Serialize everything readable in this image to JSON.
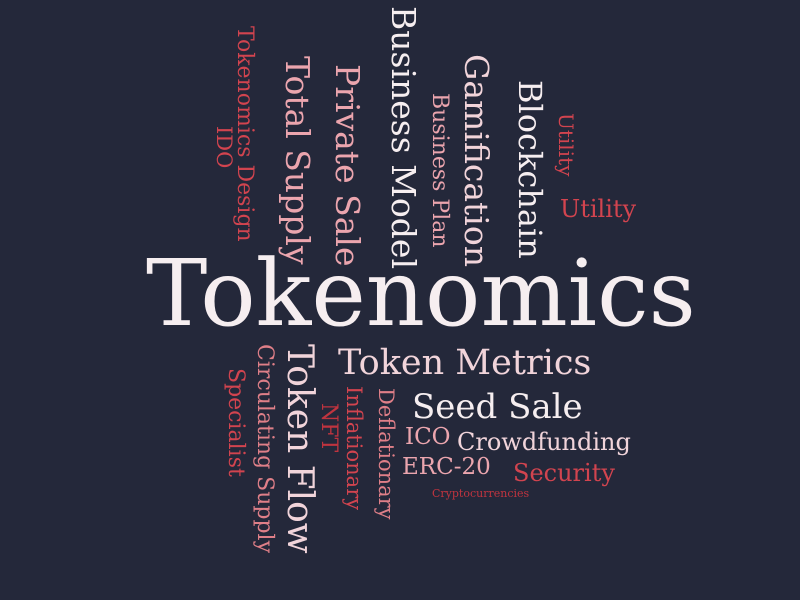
{
  "background": "#24283a",
  "palette": {
    "white": "#f6eef0",
    "pale": "#f1d4da",
    "pink": "#eba5ae",
    "rose": "#df7f88",
    "red": "#d2444f",
    "dark_red": "#c0343f"
  },
  "words": {
    "tokenomics": "Tokenomics",
    "business_model": "Business Model",
    "gamification": "Gamification",
    "blockchain": "Blockchain",
    "private_sale": "Private Sale",
    "total_supply": "Total Supply",
    "business_plan": "Business Plan",
    "tokenomics_design": "Tokenomics Design",
    "ido": "IDO",
    "utility_vertical": "Utility",
    "utility": "Utility",
    "token_metrics": "Token Metrics",
    "seed_sale": "Seed Sale",
    "token_flow": "Token Flow",
    "circulating_supply": "Circulating Supply",
    "specialist": "Specialist",
    "nft": "NFT",
    "inflationary": "Inflationary",
    "deflationary": "Deflationary",
    "ico": "ICO",
    "crowdfunding": "Crowdfunding",
    "erc20": "ERC-20",
    "security": "Security",
    "cryptocurrencies": "Cryptocurrencies"
  }
}
